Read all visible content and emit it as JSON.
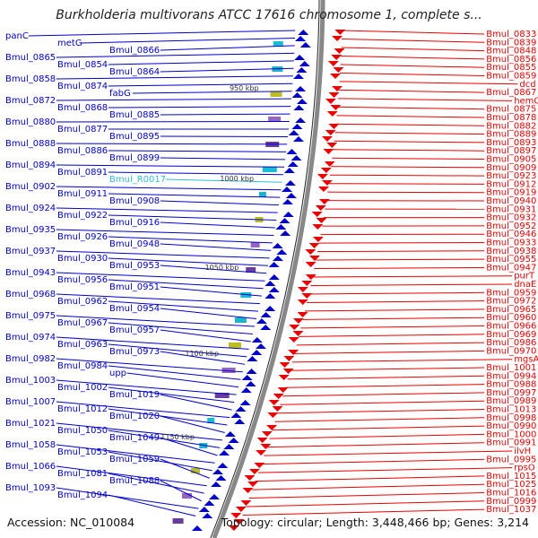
{
  "title": "Burkholderia multivorans ATCC 17616 chromosome 1, complete s...",
  "footer": {
    "accession": "Accession: NC_010084",
    "summary": "Topology: circular; Length: 3,448,466 bp; Genes: 3,214"
  },
  "scale_labels": [
    "950 kbp",
    "1000 kbp",
    "1050 kbp",
    "1100 kbp",
    "1150 kbp"
  ],
  "colors": {
    "plus_strand": "#0000cc",
    "minus_strand": "#ee0000",
    "rna": "#33bbdd",
    "backbone": "#888888"
  },
  "left_labels": [
    "panC",
    "metG",
    "Bmul_0866",
    "Bmul_0865",
    "Bmul_0854",
    "Bmul_0864",
    "Bmul_0858",
    "Bmul_0874",
    "fabG",
    "Bmul_0872",
    "Bmul_0868",
    "Bmul_0885",
    "Bmul_0880",
    "Bmul_0877",
    "Bmul_0895",
    "Bmul_0888",
    "Bmul_0886",
    "Bmul_0899",
    "Bmul_0894",
    "Bmul_0891",
    "Bmul_R0017",
    "Bmul_0902",
    "Bmul_0911",
    "Bmul_0908",
    "Bmul_0924",
    "Bmul_0922",
    "Bmul_0916",
    "Bmul_0935",
    "Bmul_0926",
    "Bmul_0948",
    "Bmul_0937",
    "Bmul_0930",
    "Bmul_0953",
    "Bmul_0943",
    "Bmul_0956",
    "Bmul_0951",
    "Bmul_0968",
    "Bmul_0962",
    "Bmul_0954",
    "Bmul_0975",
    "Bmul_0967",
    "Bmul_0957",
    "Bmul_0974",
    "Bmul_0963",
    "Bmul_0973",
    "Bmul_0982",
    "Bmul_0984",
    "upp",
    "Bmul_1003",
    "Bmul_1002",
    "Bmul_1019",
    "Bmul_1007",
    "Bmul_1012",
    "Bmul_1020",
    "Bmul_1021",
    "Bmul_1050",
    "Bmul_1049",
    "Bmul_1058",
    "Bmul_1053",
    "Bmul_1059",
    "Bmul_1066",
    "Bmul_1081",
    "Bmul_1088",
    "Bmul_1093",
    "Bmul_1094"
  ],
  "right_labels": [
    "Bmul_0833",
    "Bmul_0839",
    "Bmul_0848",
    "Bmul_0856",
    "Bmul_0855",
    "Bmul_0859",
    "dcd",
    "Bmul_0867",
    "hemC",
    "Bmul_0875",
    "Bmul_0878",
    "Bmul_0882",
    "Bmul_0889",
    "Bmul_0893",
    "Bmul_0897",
    "Bmul_0905",
    "Bmul_0909",
    "Bmul_0923",
    "Bmul_0912",
    "Bmul_0919",
    "Bmul_0940",
    "Bmul_0931",
    "Bmul_0932",
    "Bmul_0952",
    "Bmul_0946",
    "Bmul_0933",
    "Bmul_0938",
    "Bmul_0955",
    "Bmul_0947",
    "purT",
    "dnaE",
    "Bmul_0959",
    "Bmul_0972",
    "Bmul_0965",
    "Bmul_0960",
    "Bmul_0966",
    "Bmul_0969",
    "Bmul_0986",
    "Bmul_0970",
    "mgsA",
    "Bmul_1001",
    "Bmul_0994",
    "Bmul_0988",
    "Bmul_0997",
    "Bmul_0989",
    "Bmul_1013",
    "Bmul_0998",
    "Bmul_0990",
    "Bmul_1000",
    "Bmul_0991",
    "ilvH",
    "Bmul_0995",
    "rpsO",
    "Bmul_1015",
    "Bmul_1025",
    "Bmul_1016",
    "Bmul_0999",
    "Bmul_1037"
  ]
}
